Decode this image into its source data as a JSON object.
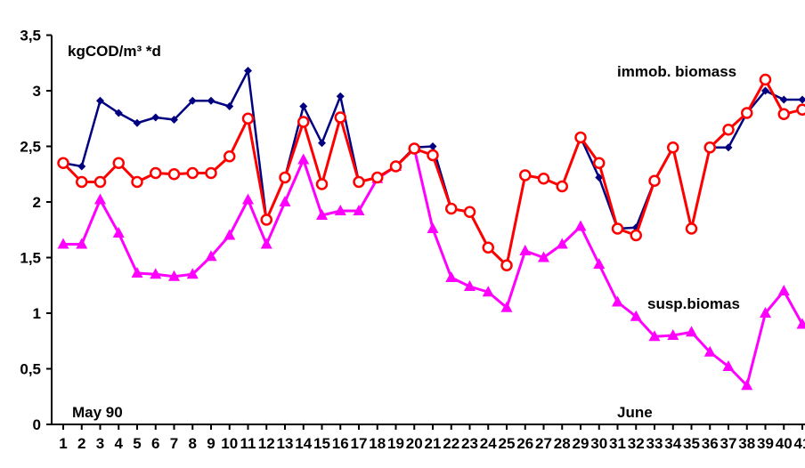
{
  "chart_data": {
    "type": "line",
    "unit_label": "kgCOD/m³ *d",
    "x": [
      1,
      2,
      3,
      4,
      5,
      6,
      7,
      8,
      9,
      10,
      11,
      12,
      13,
      14,
      15,
      16,
      17,
      18,
      19,
      20,
      21,
      22,
      23,
      24,
      25,
      26,
      27,
      28,
      29,
      30,
      31,
      32,
      33,
      34,
      35,
      36,
      37,
      38,
      39,
      40,
      41
    ],
    "xlim": [
      1,
      41
    ],
    "ylim": [
      0,
      3.5
    ],
    "x_ticks": [
      1,
      3,
      5,
      7,
      9,
      11,
      13,
      15,
      17,
      19,
      21,
      23,
      25,
      27,
      29,
      31,
      33,
      35,
      37,
      39,
      41
    ],
    "x_tick_labels": [
      "1",
      "3",
      "5",
      "7",
      "9",
      "11",
      "13",
      "15",
      "17",
      "19",
      "21",
      "23",
      "25",
      "27",
      "29",
      "31",
      "33",
      "35",
      "37",
      "39",
      "41"
    ],
    "x_minor_ticks": [
      2,
      4,
      6,
      8,
      10,
      12,
      14,
      16,
      18,
      20,
      22,
      24,
      26,
      28,
      30,
      32,
      34,
      36,
      38,
      40
    ],
    "x_minor_tick_labels": [
      "2",
      "4",
      "6",
      "8",
      "10",
      "12",
      "14",
      "16",
      "18",
      "20",
      "22",
      "24",
      "26",
      "28",
      "30",
      "32",
      "34",
      "36",
      "38",
      "40"
    ],
    "y_ticks": [
      0,
      0.5,
      1,
      1.5,
      2,
      2.5,
      3,
      3.5
    ],
    "y_tick_labels": [
      "0",
      "0,5",
      "1",
      "1,5",
      "2",
      "2,5",
      "3",
      "3,5"
    ],
    "grid": false,
    "annotations": {
      "start_period": "May 90",
      "end_period": "June"
    },
    "series": [
      {
        "name": "immob. biomass",
        "color": "#000080",
        "marker": "diamond",
        "values": [
          2.35,
          2.32,
          2.91,
          2.8,
          2.71,
          2.76,
          2.74,
          2.91,
          2.91,
          2.86,
          3.18,
          1.84,
          2.22,
          2.86,
          2.53,
          2.95,
          2.18,
          2.22,
          2.32,
          2.49,
          2.5,
          1.94,
          1.91,
          1.59,
          1.43,
          2.24,
          2.21,
          2.14,
          2.58,
          2.22,
          1.76,
          1.77,
          2.19,
          2.49,
          1.76,
          2.49,
          2.49,
          2.8,
          3.0,
          2.92,
          2.92
        ]
      },
      {
        "name": "",
        "color": "#ff0000",
        "marker": "circle",
        "values": [
          2.35,
          2.18,
          2.18,
          2.35,
          2.18,
          2.26,
          2.25,
          2.26,
          2.26,
          2.41,
          2.75,
          1.84,
          2.22,
          2.72,
          2.16,
          2.76,
          2.18,
          2.22,
          2.32,
          2.48,
          2.42,
          1.94,
          1.91,
          1.59,
          1.43,
          2.24,
          2.21,
          2.14,
          2.58,
          2.35,
          1.76,
          1.7,
          2.19,
          2.49,
          1.76,
          2.49,
          2.65,
          2.8,
          3.1,
          2.79,
          2.83
        ]
      },
      {
        "name": "susp.biomas",
        "color": "#ff00ff",
        "marker": "triangle",
        "values": [
          1.62,
          1.62,
          2.02,
          1.72,
          1.36,
          1.35,
          1.33,
          1.35,
          1.51,
          1.7,
          2.02,
          1.62,
          2.0,
          2.38,
          1.88,
          1.92,
          1.92,
          2.21,
          2.32,
          2.48,
          1.76,
          1.32,
          1.24,
          1.19,
          1.05,
          1.56,
          1.5,
          1.62,
          1.78,
          1.44,
          1.1,
          0.97,
          0.79,
          0.8,
          0.83,
          0.65,
          0.52,
          0.35,
          1.0,
          1.2,
          0.9
        ]
      }
    ]
  }
}
